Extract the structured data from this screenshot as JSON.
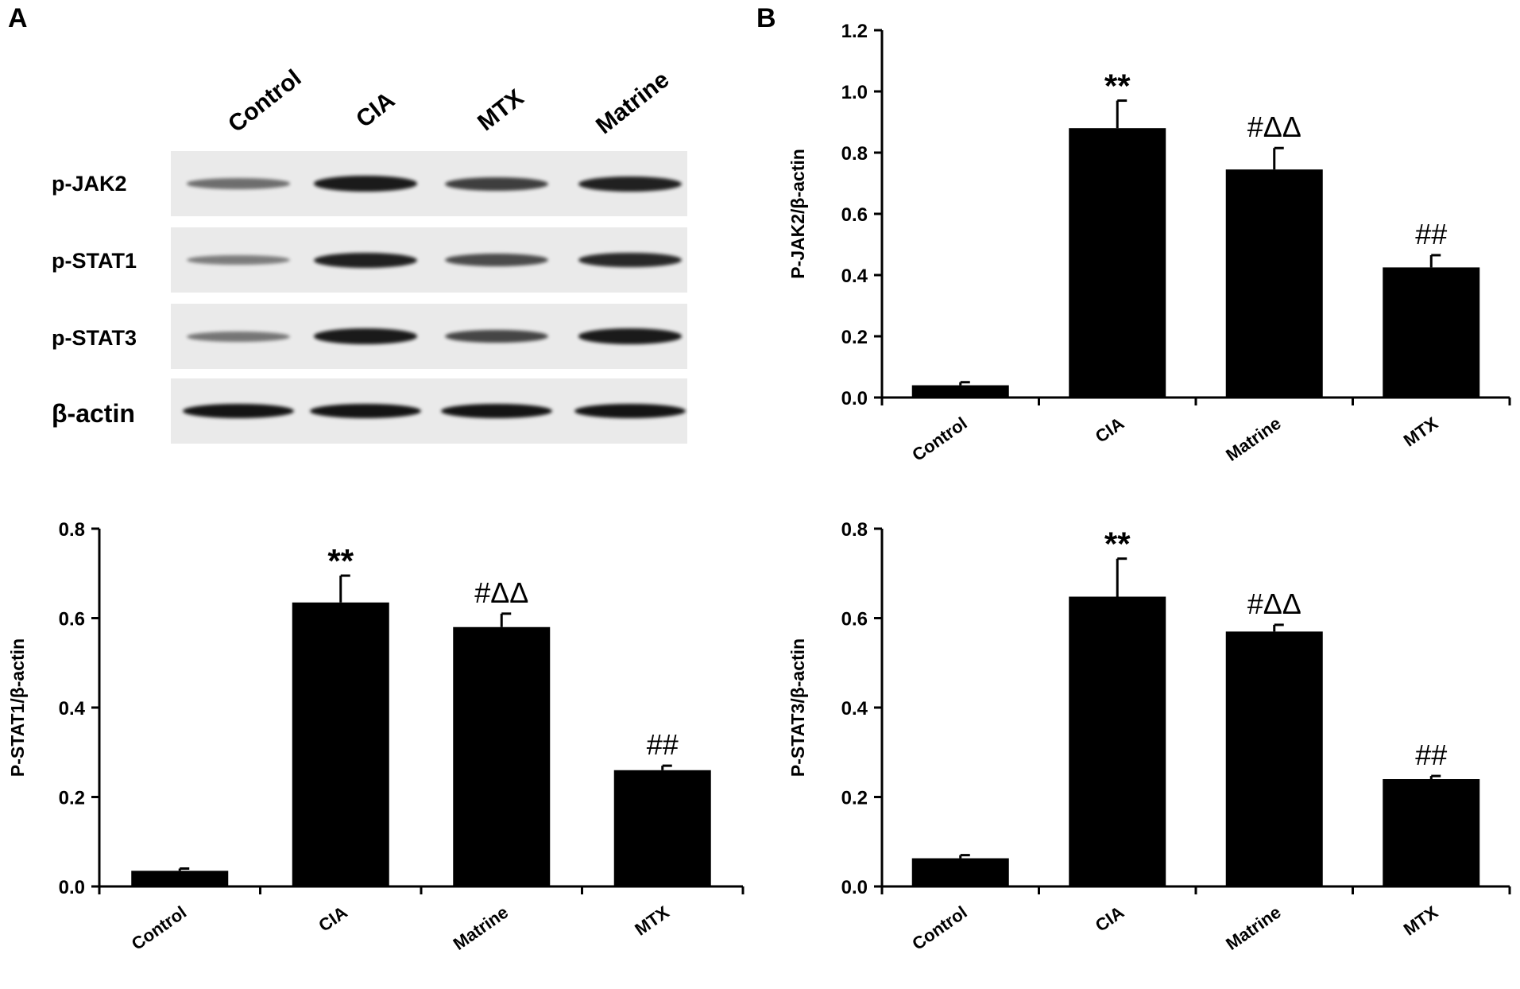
{
  "panels": {
    "a_letter": "A",
    "b_letter": "B"
  },
  "blot": {
    "lanes": [
      "Control",
      "CIA",
      "MTX",
      "Matrine"
    ],
    "rows": [
      {
        "label": "p-JAK2",
        "intensity": [
          0.35,
          0.95,
          0.7,
          0.9
        ]
      },
      {
        "label": "p-STAT1",
        "intensity": [
          0.25,
          0.9,
          0.6,
          0.85
        ]
      },
      {
        "label": "p-STAT3",
        "intensity": [
          0.3,
          0.95,
          0.65,
          0.95
        ]
      },
      {
        "label": "β-actin",
        "intensity": [
          1.0,
          1.0,
          1.0,
          1.0
        ]
      }
    ]
  },
  "chart_data": [
    {
      "id": "jak2",
      "type": "bar",
      "categories": [
        "Control",
        "CIA",
        "Matrine",
        "MTX"
      ],
      "values": [
        0.04,
        0.88,
        0.745,
        0.425
      ],
      "errors": [
        0.01,
        0.09,
        0.07,
        0.04
      ],
      "annotations": [
        "",
        "**",
        "#ΔΔ",
        "##"
      ],
      "ylabel": "P-JAK2/β-actin",
      "ylim": [
        0,
        1.2
      ],
      "yticks": [
        "0.0",
        "0.2",
        "0.4",
        "0.6",
        "0.8",
        "1.0",
        "1.2"
      ],
      "bar_color": "#000000"
    },
    {
      "id": "stat1",
      "type": "bar",
      "categories": [
        "Control",
        "CIA",
        "Matrine",
        "MTX"
      ],
      "values": [
        0.035,
        0.635,
        0.58,
        0.26
      ],
      "errors": [
        0.005,
        0.06,
        0.03,
        0.01
      ],
      "annotations": [
        "",
        "**",
        "#ΔΔ",
        "##"
      ],
      "ylabel": "P-STAT1/β-actin",
      "ylim": [
        0,
        0.8
      ],
      "yticks": [
        "0.0",
        "0.2",
        "0.4",
        "0.6",
        "0.8"
      ],
      "bar_color": "#000000"
    },
    {
      "id": "stat3",
      "type": "bar",
      "categories": [
        "Control",
        "CIA",
        "Matrine",
        "MTX"
      ],
      "values": [
        0.063,
        0.648,
        0.57,
        0.24
      ],
      "errors": [
        0.007,
        0.085,
        0.015,
        0.007
      ],
      "annotations": [
        "",
        "**",
        "#ΔΔ",
        "##"
      ],
      "ylabel": "P-STAT3/β-actin",
      "ylim": [
        0,
        0.8
      ],
      "yticks": [
        "0.0",
        "0.2",
        "0.4",
        "0.6",
        "0.8"
      ],
      "bar_color": "#000000"
    }
  ]
}
